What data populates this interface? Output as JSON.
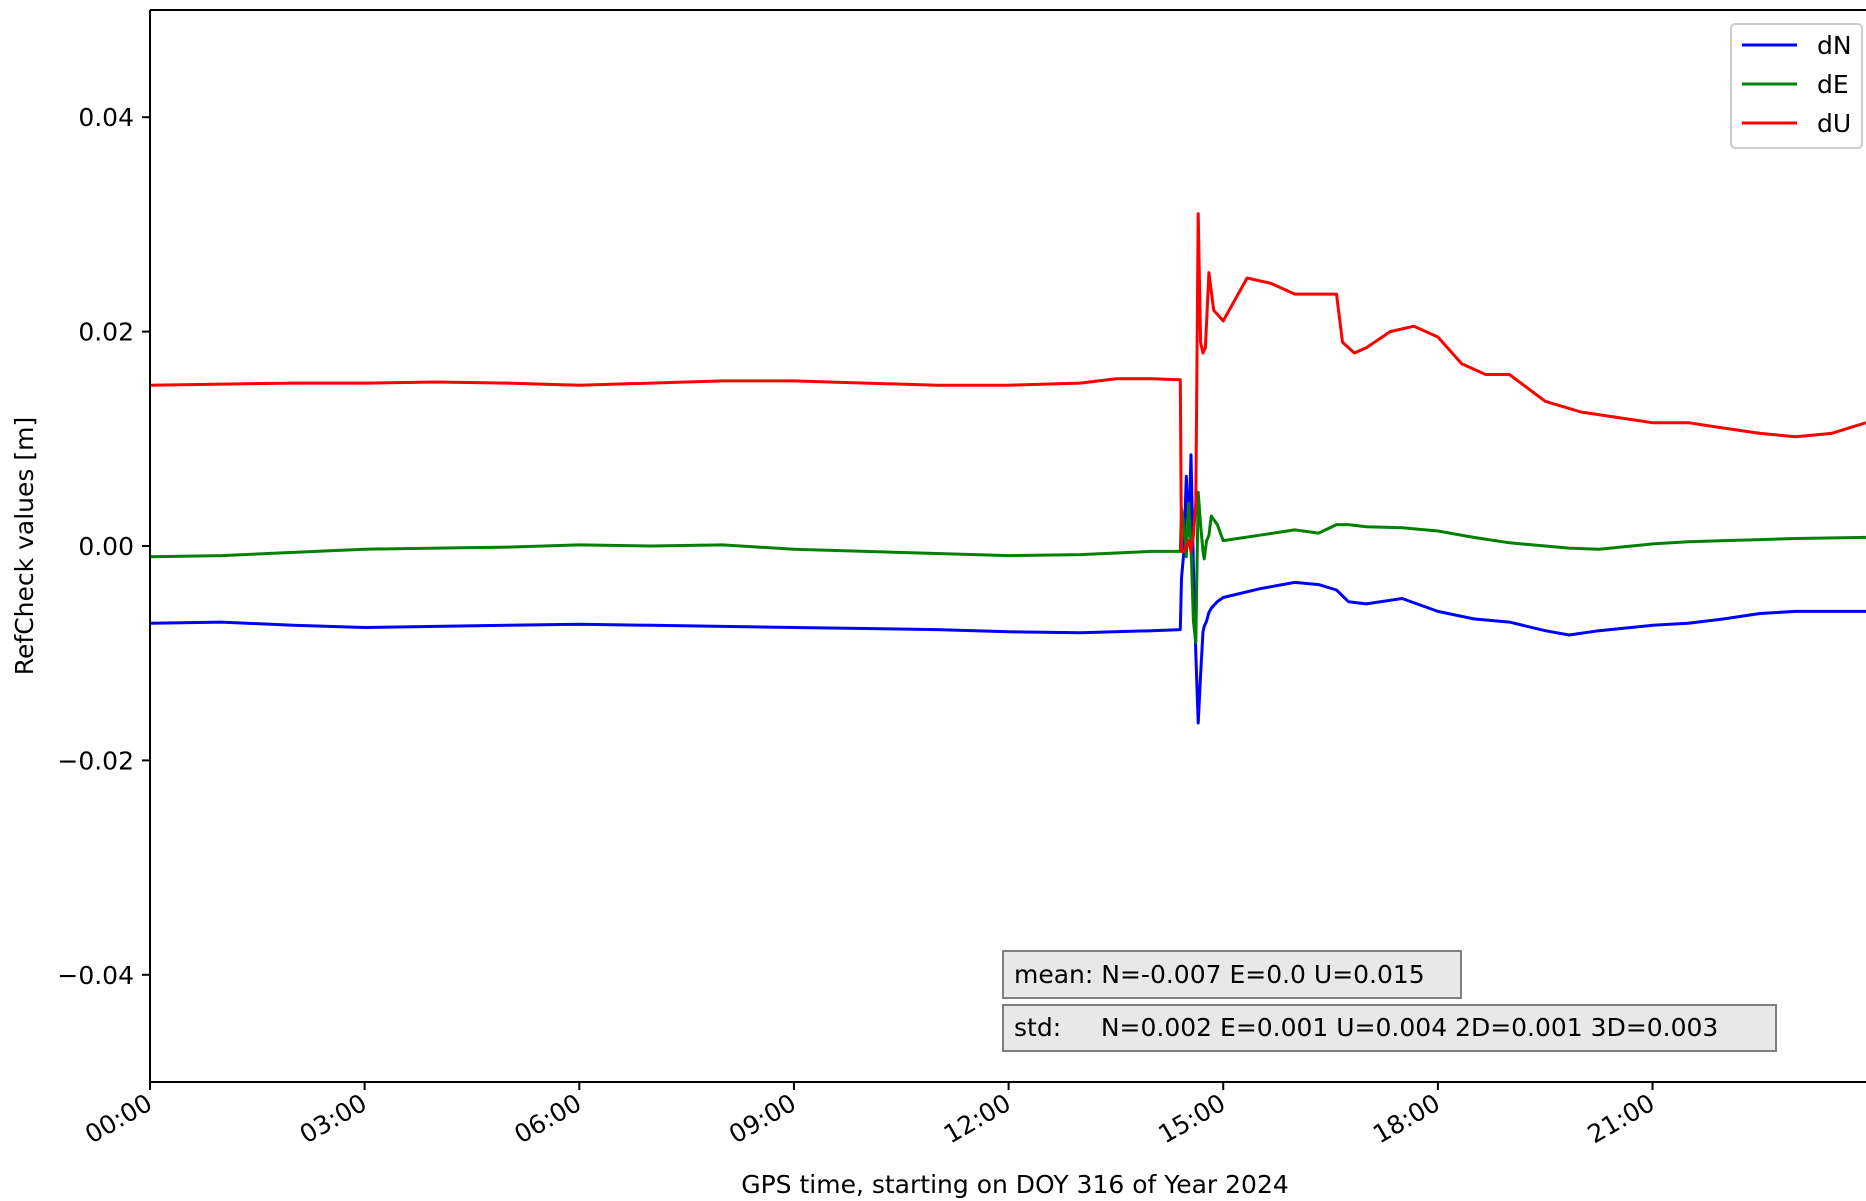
{
  "chart_data": {
    "type": "line",
    "title": "",
    "xlabel": "GPS time, starting on DOY 316 of Year 2024",
    "ylabel": "RefCheck values [m]",
    "xlim": [
      "00:00",
      "23:59"
    ],
    "ylim": [
      -0.05,
      0.05
    ],
    "x_ticks": [
      "00:00",
      "03:00",
      "06:00",
      "09:00",
      "12:00",
      "15:00",
      "18:00",
      "21:00"
    ],
    "y_ticks": [
      {
        "value": 0.04,
        "label": "0.04"
      },
      {
        "value": 0.02,
        "label": "0.02"
      },
      {
        "value": 0.0,
        "label": "0.00"
      },
      {
        "value": -0.02,
        "label": "−0.02"
      },
      {
        "value": -0.04,
        "label": "−0.04"
      }
    ],
    "grid": false,
    "legend_position": "top-right",
    "series": [
      {
        "name": "dN",
        "color": "#0000ff",
        "x": [
          "00:00",
          "01:00",
          "02:00",
          "03:00",
          "04:00",
          "05:00",
          "06:00",
          "07:00",
          "08:00",
          "09:00",
          "10:00",
          "11:00",
          "12:00",
          "13:00",
          "14:00",
          "14:24",
          "14:25",
          "14:27",
          "14:29",
          "14:31",
          "14:33",
          "14:35",
          "14:37",
          "14:39",
          "14:41",
          "14:43",
          "14:44",
          "14:46",
          "14:48",
          "14:50",
          "14:55",
          "15:00",
          "15:30",
          "16:00",
          "16:20",
          "16:35",
          "16:45",
          "17:00",
          "17:30",
          "18:00",
          "18:30",
          "19:00",
          "19:30",
          "19:50",
          "20:15",
          "21:00",
          "21:30",
          "22:00",
          "22:30",
          "23:00",
          "23:59"
        ],
        "values": [
          -0.0072,
          -0.0071,
          -0.0074,
          -0.0076,
          -0.0075,
          -0.0074,
          -0.0073,
          -0.0074,
          -0.0075,
          -0.0076,
          -0.0077,
          -0.0078,
          -0.008,
          -0.0081,
          -0.0079,
          -0.0078,
          -0.003,
          -0.0005,
          0.0065,
          0.001,
          0.0085,
          -0.002,
          -0.01,
          -0.0165,
          -0.012,
          -0.008,
          -0.0075,
          -0.007,
          -0.0062,
          -0.0058,
          -0.0052,
          -0.0048,
          -0.004,
          -0.0034,
          -0.0036,
          -0.0041,
          -0.0052,
          -0.0054,
          -0.0049,
          -0.0061,
          -0.0068,
          -0.0071,
          -0.0079,
          -0.0083,
          -0.0079,
          -0.0074,
          -0.0072,
          -0.0068,
          -0.0063,
          -0.0061,
          -0.0061
        ]
      },
      {
        "name": "dE",
        "color": "#008000",
        "x": [
          "00:00",
          "01:00",
          "02:00",
          "03:00",
          "04:00",
          "05:00",
          "06:00",
          "07:00",
          "08:00",
          "09:00",
          "10:00",
          "11:00",
          "12:00",
          "13:00",
          "14:00",
          "14:24",
          "14:25",
          "14:27",
          "14:29",
          "14:31",
          "14:33",
          "14:35",
          "14:37",
          "14:39",
          "14:41",
          "14:43",
          "14:44",
          "14:46",
          "14:48",
          "14:50",
          "14:55",
          "15:00",
          "15:30",
          "16:00",
          "16:20",
          "16:35",
          "16:45",
          "17:00",
          "17:30",
          "18:00",
          "18:30",
          "19:00",
          "19:30",
          "19:50",
          "20:15",
          "21:00",
          "21:30",
          "22:00",
          "22:30",
          "23:00",
          "23:59"
        ],
        "values": [
          -0.001,
          -0.0009,
          -0.0006,
          -0.0003,
          -0.0002,
          -0.0001,
          0.0001,
          0.0,
          0.0001,
          -0.0003,
          -0.0005,
          -0.0007,
          -0.0009,
          -0.0008,
          -0.0005,
          -0.0005,
          0.0035,
          0.002,
          -0.001,
          0.004,
          0.0,
          -0.007,
          -0.009,
          0.005,
          0.002,
          -0.0005,
          -0.0012,
          0.0005,
          0.001,
          0.0028,
          0.002,
          0.0005,
          0.001,
          0.0015,
          0.0012,
          0.002,
          0.002,
          0.0018,
          0.0017,
          0.0014,
          0.0008,
          0.0003,
          0.0,
          -0.0002,
          -0.0003,
          0.0002,
          0.0004,
          0.0005,
          0.0006,
          0.0007,
          0.0008
        ]
      },
      {
        "name": "dU",
        "color": "#ff0000",
        "x": [
          "00:00",
          "01:00",
          "02:00",
          "03:00",
          "04:00",
          "05:00",
          "06:00",
          "07:00",
          "08:00",
          "09:00",
          "10:00",
          "11:00",
          "12:00",
          "13:00",
          "13:30",
          "14:00",
          "14:24",
          "14:25",
          "14:27",
          "14:29",
          "14:31",
          "14:33",
          "14:35",
          "14:37",
          "14:39",
          "14:41",
          "14:43",
          "14:45",
          "14:48",
          "14:52",
          "15:00",
          "15:10",
          "15:20",
          "15:40",
          "16:00",
          "16:20",
          "16:35",
          "16:40",
          "16:50",
          "17:00",
          "17:20",
          "17:40",
          "18:00",
          "18:20",
          "18:40",
          "19:00",
          "19:30",
          "20:00",
          "20:30",
          "21:00",
          "21:30",
          "22:00",
          "22:30",
          "23:00",
          "23:30",
          "23:59"
        ],
        "values": [
          0.015,
          0.0151,
          0.0152,
          0.0152,
          0.0153,
          0.0152,
          0.015,
          0.0152,
          0.0154,
          0.0154,
          0.0152,
          0.015,
          0.015,
          0.0152,
          0.0156,
          0.0156,
          0.0155,
          -0.0005,
          -0.0005,
          0.0,
          0.0005,
          -0.0005,
          0.001,
          0.004,
          0.031,
          0.019,
          0.018,
          0.0185,
          0.0255,
          0.022,
          0.021,
          0.023,
          0.025,
          0.0245,
          0.0235,
          0.0235,
          0.0235,
          0.019,
          0.018,
          0.0185,
          0.02,
          0.0205,
          0.0195,
          0.017,
          0.016,
          0.016,
          0.0135,
          0.0125,
          0.012,
          0.0115,
          0.0115,
          0.011,
          0.0105,
          0.0102,
          0.0105,
          0.0115
        ]
      }
    ],
    "annotations": [
      "mean: N=-0.007 E=0.0 U=0.015",
      "std:     N=0.002 E=0.001 U=0.004 2D=0.001 3D=0.003"
    ]
  }
}
